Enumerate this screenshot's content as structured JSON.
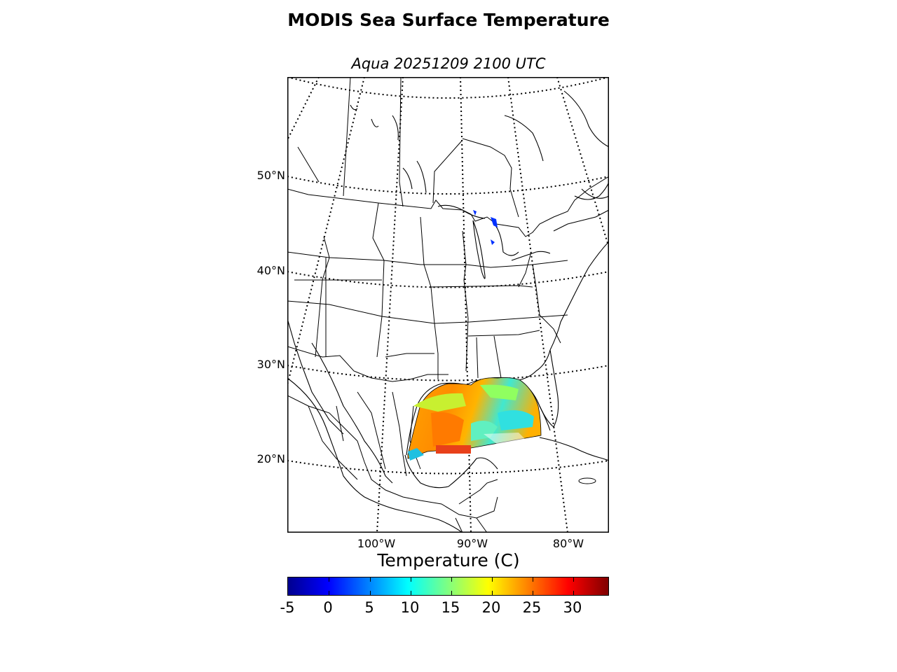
{
  "title": "MODIS Sea Surface Temperature",
  "subtitle": "Aqua 20251209 2100 UTC",
  "map": {
    "lat_labels": [
      "50°N",
      "40°N",
      "30°N",
      "20°N"
    ],
    "lon_labels": [
      "100°W",
      "90°W",
      "80°W"
    ]
  },
  "colorbar": {
    "label": "Temperature (C)",
    "colormap": "jet",
    "range": [
      -5,
      34
    ],
    "tick_labels": [
      "-5",
      "0",
      "5",
      "10",
      "15",
      "20",
      "25",
      "30"
    ]
  }
}
